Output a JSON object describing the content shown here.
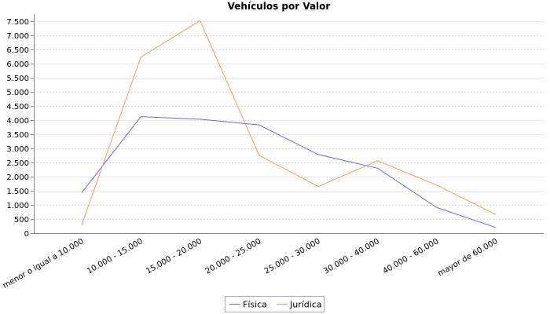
{
  "chart_data": {
    "type": "line",
    "title": "Vehículos por Valor",
    "xlabel": "",
    "ylabel": "",
    "categories": [
      "menor o igual a 10.000",
      "10.000 - 15.000",
      "15.000 - 20.000",
      "20.000 - 25.000",
      "25.000 - 30.000",
      "30.000 - 40.000",
      "40.000 - 60.000",
      "mayor de 60.000"
    ],
    "series": [
      {
        "name": "Física",
        "color": "#6666ff",
        "values": [
          1430,
          4120,
          4030,
          3830,
          2780,
          2300,
          910,
          200
        ]
      },
      {
        "name": "Jurídica",
        "color": "#ff9955",
        "values": [
          290,
          6230,
          7520,
          2750,
          1650,
          2560,
          1700,
          660
        ]
      }
    ],
    "ylim": [
      0,
      7750
    ],
    "yticks": [
      0,
      500,
      1000,
      1500,
      2000,
      2500,
      3000,
      3500,
      4000,
      4500,
      5000,
      5500,
      6000,
      6500,
      7000,
      7500
    ],
    "ytick_labels": [
      "0",
      "500",
      "1.000",
      "1.500",
      "2.000",
      "2.500",
      "3.000",
      "3.500",
      "4.000",
      "4.500",
      "5.000",
      "5.500",
      "6.000",
      "6.500",
      "7.000",
      "7.500"
    ],
    "grid": true,
    "legend_position": "bottom"
  }
}
